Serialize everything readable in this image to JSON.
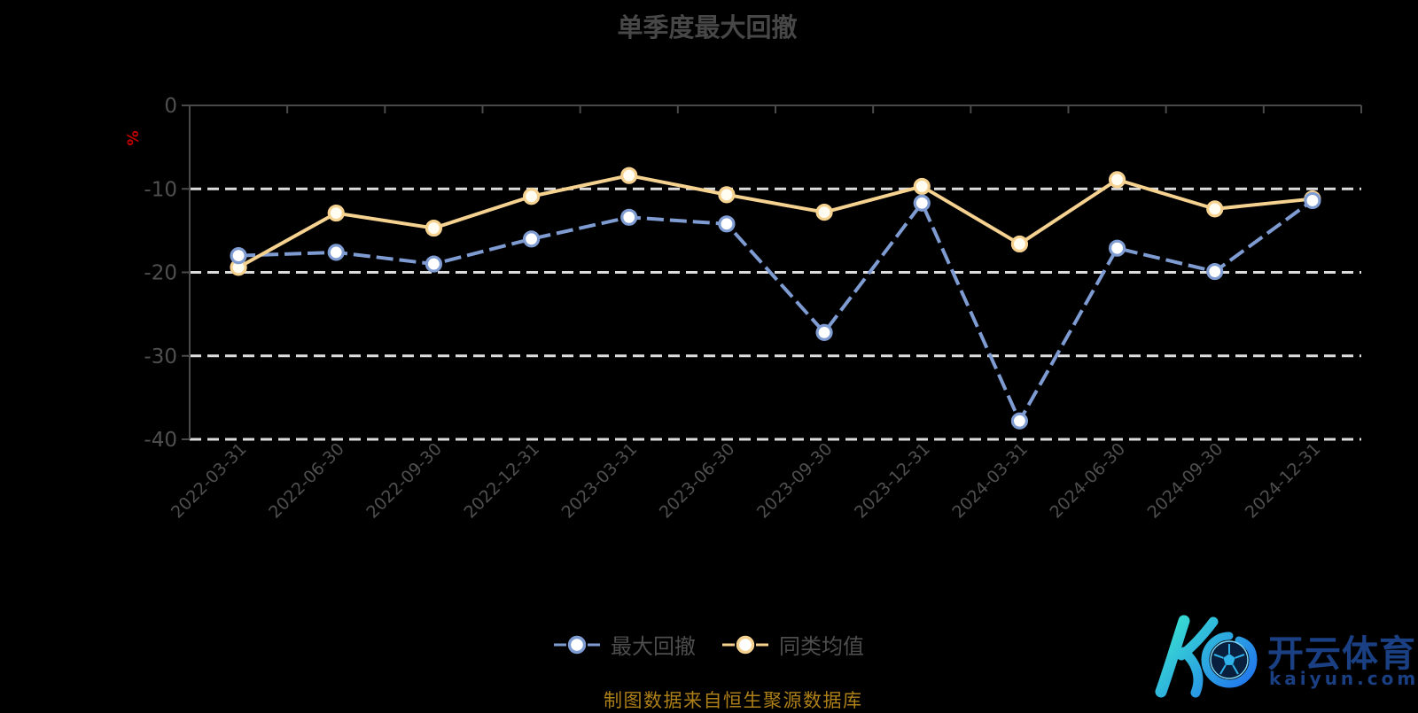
{
  "page": {
    "background": "#000000"
  },
  "chart_data": {
    "type": "line",
    "title": "单季度最大回撤",
    "ylabel": "%",
    "ylim": [
      -40,
      0
    ],
    "y_ticks": [
      0,
      -10,
      -20,
      -30,
      -40
    ],
    "grid": "horizontal-dashed-white",
    "legend_position": "bottom-center",
    "marker": "hollow-circle",
    "categories": [
      "2022-03-31",
      "2022-06-30",
      "2022-09-30",
      "2022-12-31",
      "2023-03-31",
      "2023-06-30",
      "2023-09-30",
      "2023-12-31",
      "2024-03-31",
      "2024-06-30",
      "2024-09-30",
      "2024-12-31"
    ],
    "series": [
      {
        "id": "max-drawdown",
        "name": "最大回撤",
        "color": "#7e9bd2",
        "marker_fill": "#ffffff",
        "line_style": "dashed",
        "values": [
          -18.0,
          -17.6,
          -19.0,
          -16.0,
          -13.4,
          -14.2,
          -27.2,
          -11.7,
          -37.8,
          -17.1,
          -19.9,
          -11.4
        ]
      },
      {
        "id": "peer-average",
        "name": "同类均值",
        "color": "#f6d291",
        "marker_fill": "#fffdf2",
        "line_style": "solid",
        "values": [
          -19.4,
          -12.9,
          -14.7,
          -10.9,
          -8.4,
          -10.7,
          -12.8,
          -9.7,
          -16.6,
          -8.9,
          -12.4,
          -11.2
        ]
      }
    ]
  },
  "footer": {
    "caption": "制图数据来自恒生聚源数据库"
  },
  "watermark": {
    "cn": "开云体育",
    "domain": "kaiyun.com",
    "soccer_ball": "soccer-ball-icon"
  },
  "colors": {
    "axis": "#4a4a4a",
    "tick_label": "#4f4f4f",
    "gridline": "#dcdcdc",
    "title": "#474747",
    "legend_text": "#4d4d4d",
    "ylabel": "#c40000",
    "caption": "#ad7f18",
    "watermark_text": "#1a3f82",
    "logo_gradient_start": "#3ae6cf",
    "logo_gradient_end": "#1f6cf0"
  }
}
